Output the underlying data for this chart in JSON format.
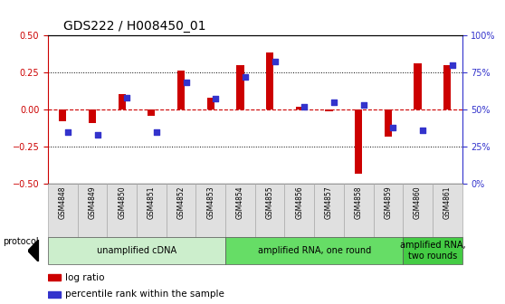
{
  "title": "GDS222 / H008450_01",
  "samples": [
    "GSM4848",
    "GSM4849",
    "GSM4850",
    "GSM4851",
    "GSM4852",
    "GSM4853",
    "GSM4854",
    "GSM4855",
    "GSM4856",
    "GSM4857",
    "GSM4858",
    "GSM4859",
    "GSM4860",
    "GSM4861"
  ],
  "log_ratio": [
    -0.08,
    -0.09,
    0.1,
    -0.04,
    0.26,
    0.08,
    0.3,
    0.38,
    0.02,
    -0.01,
    -0.43,
    -0.18,
    0.31,
    0.3
  ],
  "percentile": [
    35,
    33,
    58,
    35,
    68,
    57,
    72,
    82,
    52,
    55,
    53,
    38,
    36,
    80
  ],
  "ylim_left": [
    -0.5,
    0.5
  ],
  "ylim_right": [
    0,
    100
  ],
  "bar_color": "#cc0000",
  "dot_color": "#3333cc",
  "background_color": "#ffffff",
  "protocol_groups": [
    {
      "label": "unamplified cDNA",
      "start": 0,
      "end": 5,
      "color": "#cceecc"
    },
    {
      "label": "amplified RNA, one round",
      "start": 6,
      "end": 11,
      "color": "#66dd66"
    },
    {
      "label": "amplified RNA,\ntwo rounds",
      "start": 12,
      "end": 13,
      "color": "#44cc44"
    }
  ],
  "protocol_label": "protocol",
  "title_fontsize": 10,
  "tick_fontsize": 7,
  "sample_fontsize": 5.5,
  "proto_fontsize": 7,
  "legend_fontsize": 7.5
}
